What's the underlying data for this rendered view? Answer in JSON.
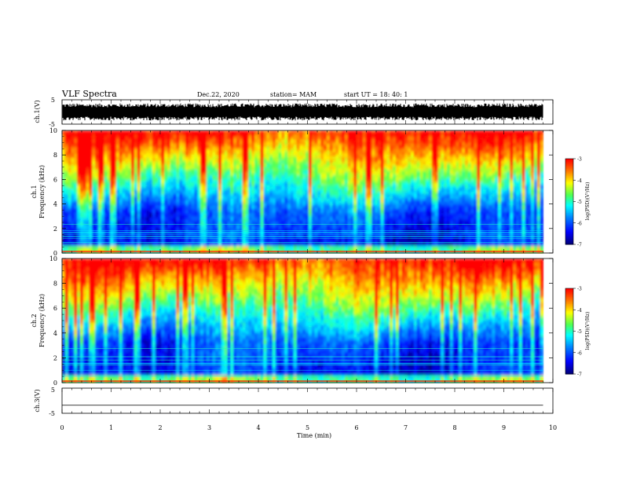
{
  "header": {
    "title": "VLF Spectra",
    "date": "Dec.22, 2020",
    "station": "station= MAM",
    "start": "start  UT =   18: 40: 1"
  },
  "colors": {
    "scale": [
      "#00007f",
      "#0000ff",
      "#00a0ff",
      "#00ffff",
      "#60ff60",
      "#ffff00",
      "#ff8000",
      "#ff0000"
    ],
    "waveform": "#000000"
  },
  "chart_data": [
    {
      "type": "line",
      "name": "ch1-waveform",
      "ylabel": "ch.1(V)",
      "ylim": [
        -5,
        5
      ],
      "yticks": [
        "5",
        "-5"
      ],
      "xlim": [
        0,
        10
      ],
      "amplitude_range": [
        -3.5,
        3.5
      ]
    },
    {
      "type": "heatmap",
      "name": "ch1-spectrogram",
      "ylabel": [
        "ch.1",
        "Frequency  (kHz)"
      ],
      "ylim": [
        0,
        10
      ],
      "yticks": [
        "0",
        "2",
        "4",
        "6",
        "8",
        "10"
      ],
      "xlim": [
        0,
        10
      ],
      "colorbar": {
        "label": "log(PSD)(V²/Hz)",
        "range": [
          -7,
          -3
        ],
        "ticks": [
          "-3",
          "-4",
          "-5",
          "-6",
          "-7"
        ]
      }
    },
    {
      "type": "heatmap",
      "name": "ch2-spectrogram",
      "ylabel": [
        "ch.2",
        "Frequency  (kHz)"
      ],
      "ylim": [
        0,
        10
      ],
      "yticks": [
        "0",
        "2",
        "4",
        "6",
        "8",
        "10"
      ],
      "xlim": [
        0,
        10
      ],
      "colorbar": {
        "label": "log(PSD)(V²/Hz)",
        "range": [
          -7,
          -3
        ],
        "ticks": [
          "-3",
          "-4",
          "-5",
          "-6",
          "-7"
        ]
      }
    },
    {
      "type": "line",
      "name": "ch3-flat",
      "ylabel": "ch.3(V)",
      "ylim": [
        -5,
        5
      ],
      "yticks": [
        "5",
        "-5"
      ],
      "xlim": [
        0,
        10
      ],
      "value": -1.8
    }
  ],
  "xaxis": {
    "label": "Time  (min)",
    "ticks": [
      "0",
      "1",
      "2",
      "3",
      "4",
      "5",
      "6",
      "7",
      "8",
      "9",
      "10"
    ],
    "data_end": 9.8
  }
}
